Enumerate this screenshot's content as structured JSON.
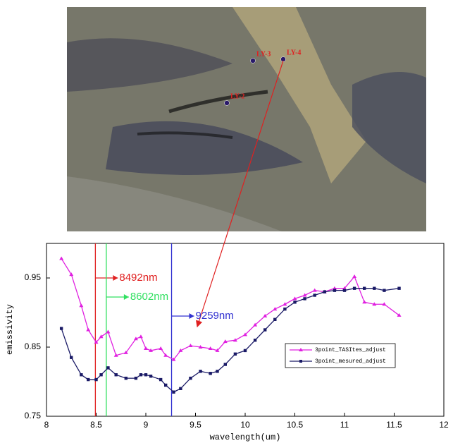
{
  "chart_data": {
    "type": "line",
    "image": {
      "points": [
        {
          "label": "LY-2"
        },
        {
          "label": "LY-3"
        },
        {
          "label": "LY-4"
        }
      ]
    },
    "x_label": "wavelength(um)",
    "y_label": "emissivity",
    "xlim": [
      8,
      12
    ],
    "xticks": [
      8,
      8.5,
      9,
      9.5,
      10,
      10.5,
      11,
      11.5,
      12
    ],
    "ylim": [
      0.75,
      1.0
    ],
    "yticks": [
      0.75,
      0.85,
      0.95
    ],
    "x": [
      8.15,
      8.25,
      8.35,
      8.42,
      8.5,
      8.55,
      8.62,
      8.7,
      8.8,
      8.9,
      8.95,
      9.0,
      9.05,
      9.15,
      9.2,
      9.28,
      9.35,
      9.45,
      9.55,
      9.65,
      9.72,
      9.8,
      9.9,
      10.0,
      10.1,
      10.2,
      10.3,
      10.4,
      10.5,
      10.6,
      10.7,
      10.8,
      10.9,
      11.0,
      11.1,
      11.2,
      11.3,
      11.4,
      11.55
    ],
    "series": [
      {
        "name": "3point_TASItes_adjust",
        "color": "#e020e0",
        "marker": "triangle",
        "values": [
          0.978,
          0.955,
          0.91,
          0.875,
          0.857,
          0.865,
          0.872,
          0.838,
          0.842,
          0.862,
          0.865,
          0.848,
          0.845,
          0.848,
          0.838,
          0.832,
          0.845,
          0.852,
          0.85,
          0.848,
          0.845,
          0.858,
          0.86,
          0.868,
          0.882,
          0.895,
          0.905,
          0.912,
          0.92,
          0.925,
          0.932,
          0.93,
          0.935,
          0.935,
          0.952,
          0.915,
          0.912,
          0.912,
          0.896
        ]
      },
      {
        "name": "3point_mesured_adjust",
        "color": "#1a1a66",
        "marker": "square",
        "values": [
          0.877,
          0.835,
          0.81,
          0.803,
          0.803,
          0.81,
          0.82,
          0.81,
          0.805,
          0.805,
          0.81,
          0.81,
          0.808,
          0.803,
          0.795,
          0.785,
          0.79,
          0.805,
          0.815,
          0.812,
          0.815,
          0.825,
          0.84,
          0.845,
          0.86,
          0.875,
          0.89,
          0.905,
          0.915,
          0.92,
          0.925,
          0.93,
          0.932,
          0.932,
          0.935,
          0.935,
          0.935,
          0.932,
          0.935
        ]
      }
    ],
    "markers": [
      {
        "x": 8.492,
        "label": "8492nm",
        "color": "#e02020"
      },
      {
        "x": 8.602,
        "label": "8602nm",
        "color": "#30e060"
      },
      {
        "x": 9.259,
        "label": "9259nm",
        "color": "#3030d0"
      }
    ],
    "legend": "lower right"
  }
}
